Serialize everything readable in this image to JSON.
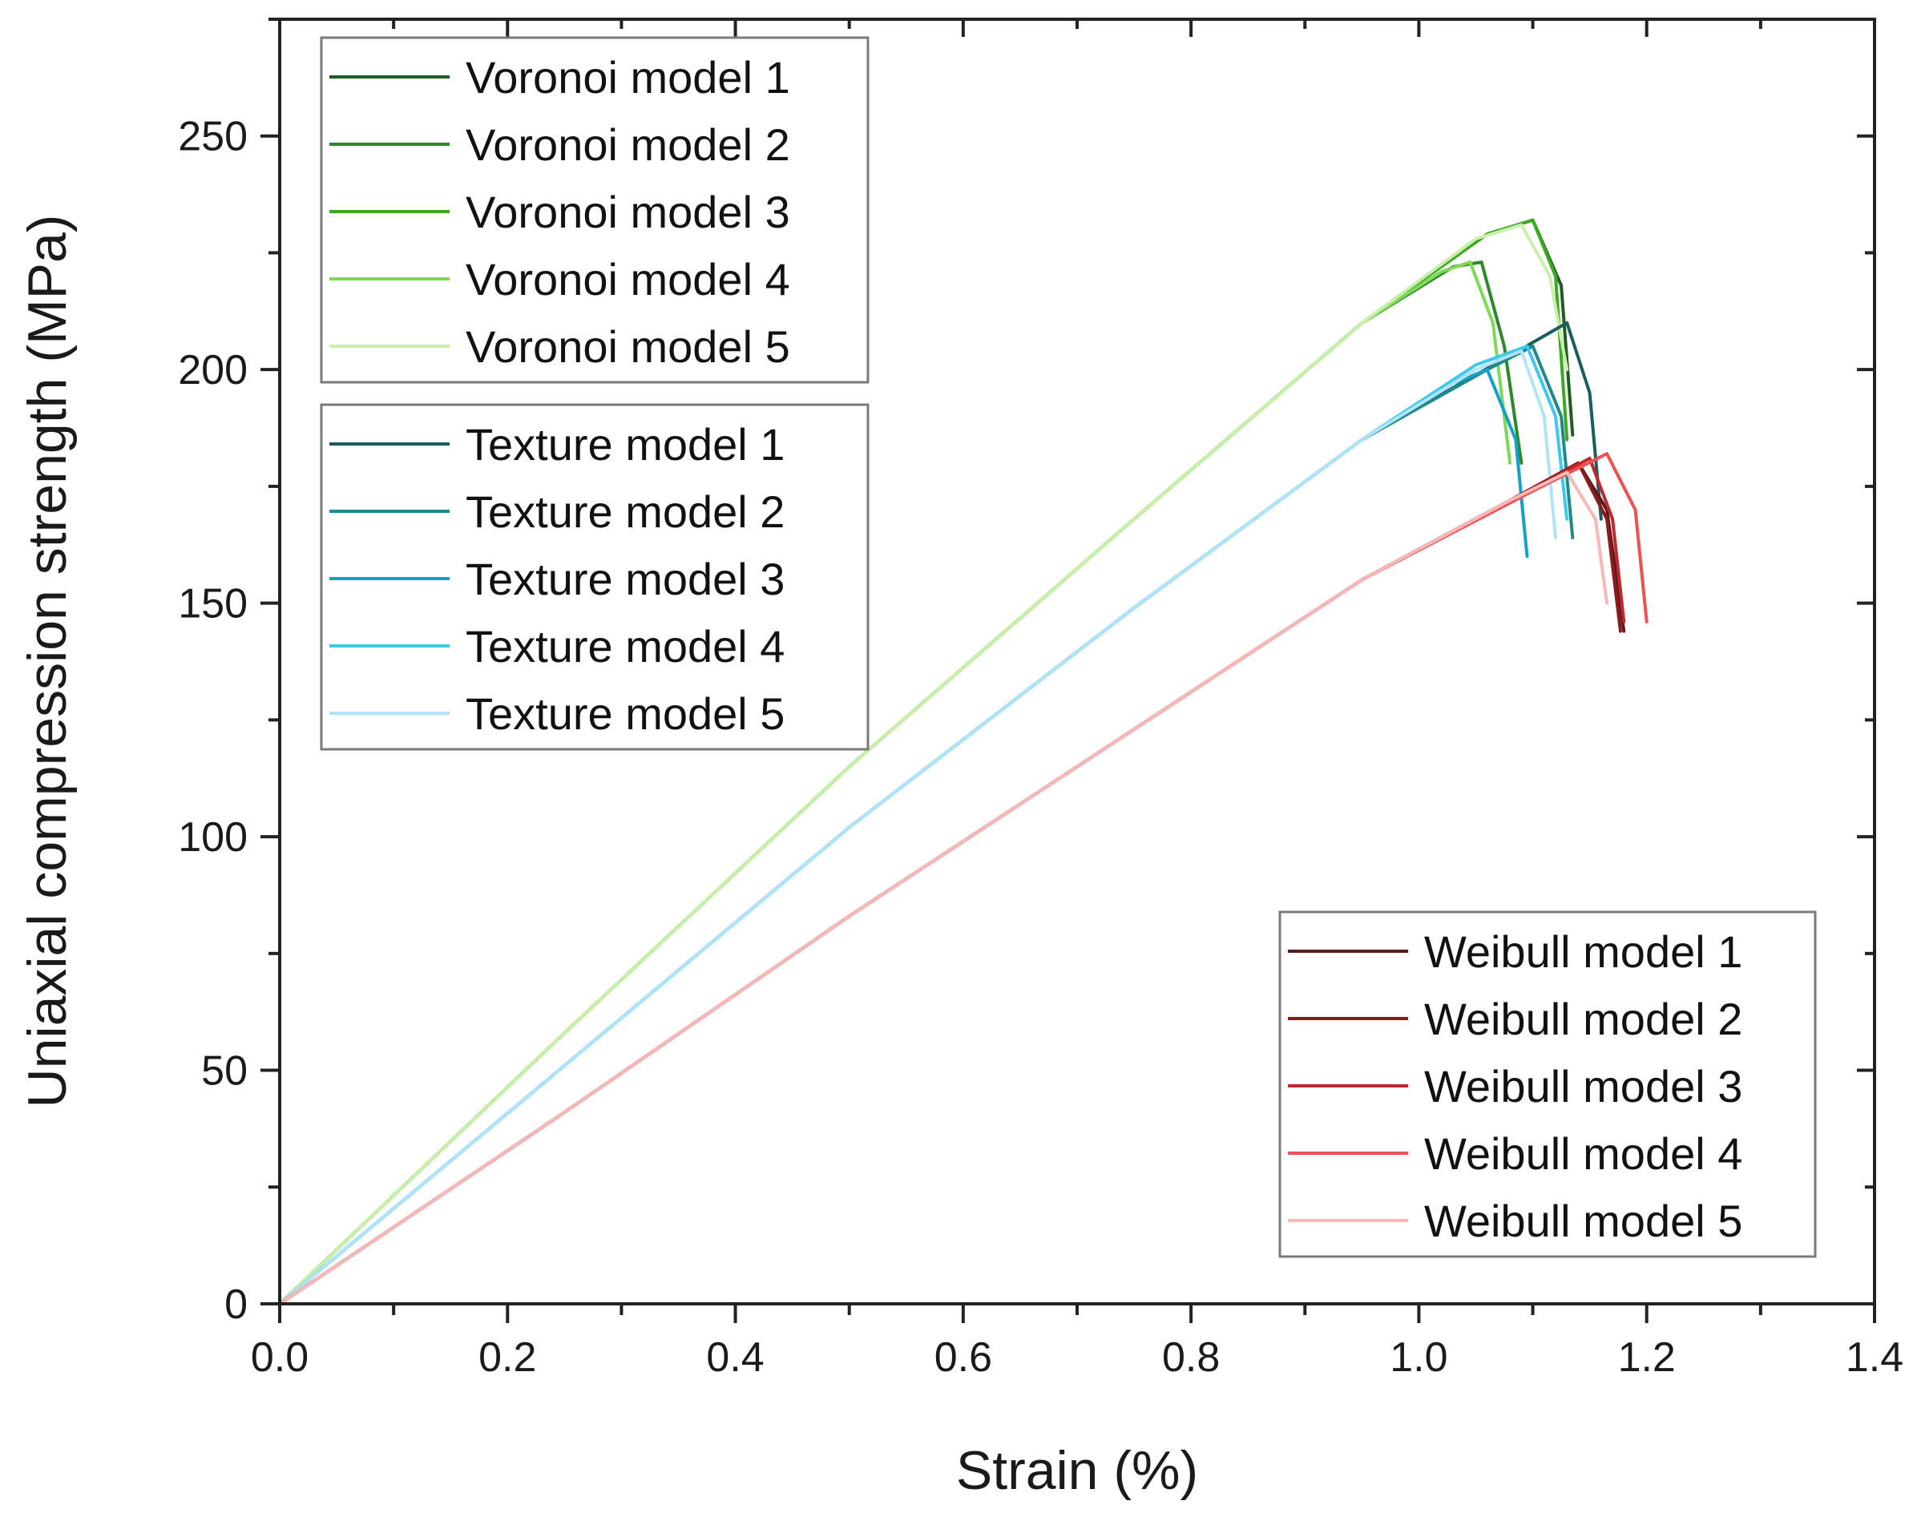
{
  "chart_data": {
    "type": "line",
    "title": "",
    "xlabel": "Strain (%)",
    "ylabel": "Uniaxial compression strength (MPa)",
    "xlim": [
      0,
      1.4
    ],
    "ylim": [
      0,
      275
    ],
    "xticks": [
      0.0,
      0.2,
      0.4,
      0.6,
      0.8,
      1.0,
      1.2,
      1.4
    ],
    "xtick_labels": [
      "0.0",
      "0.2",
      "0.4",
      "0.6",
      "0.8",
      "1.0",
      "1.2",
      "1.4"
    ],
    "yticks": [
      0,
      50,
      100,
      150,
      200,
      250
    ],
    "ytick_labels": [
      "0",
      "50",
      "100",
      "150",
      "200",
      "250"
    ],
    "grid": false,
    "legends": [
      {
        "placement": "top-left",
        "entries": [
          "Voronoi model 1",
          "Voronoi model 2",
          "Voronoi model 3",
          "Voronoi model 4",
          "Voronoi model 5"
        ]
      },
      {
        "placement": "upper-left",
        "entries": [
          "Texture model 1",
          "Texture model 2",
          "Texture model 3",
          "Texture model 4",
          "Texture model 5"
        ]
      },
      {
        "placement": "bottom-right",
        "entries": [
          "Weibull model 1",
          "Weibull model 2",
          "Weibull model 3",
          "Weibull model 4",
          "Weibull model 5"
        ]
      }
    ],
    "series": [
      {
        "name": "Voronoi model 1",
        "color": "#1f5e23",
        "x": [
          0,
          0.25,
          0.5,
          0.75,
          0.95,
          1.06,
          1.1,
          1.125,
          1.135
        ],
        "y": [
          0,
          58,
          115,
          168,
          210,
          229,
          232,
          218,
          186
        ]
      },
      {
        "name": "Voronoi model 2",
        "color": "#2a8a2a",
        "x": [
          0,
          0.25,
          0.5,
          0.75,
          0.95,
          1.03,
          1.055,
          1.075,
          1.09
        ],
        "y": [
          0,
          58,
          115,
          168,
          210,
          222,
          223,
          205,
          180
        ]
      },
      {
        "name": "Voronoi model 3",
        "color": "#3aaa22",
        "x": [
          0,
          0.25,
          0.5,
          0.75,
          0.95,
          1.06,
          1.1,
          1.12,
          1.13
        ],
        "y": [
          0,
          58,
          115,
          168,
          210,
          229,
          232,
          220,
          185
        ]
      },
      {
        "name": "Voronoi model 4",
        "color": "#7ed957",
        "x": [
          0,
          0.25,
          0.5,
          0.75,
          0.95,
          1.02,
          1.045,
          1.065,
          1.08
        ],
        "y": [
          0,
          58,
          115,
          168,
          210,
          221,
          223,
          210,
          180
        ]
      },
      {
        "name": "Voronoi model 5",
        "color": "#c8f0a8",
        "x": [
          0,
          0.25,
          0.5,
          0.75,
          0.95,
          1.05,
          1.09,
          1.115,
          1.13
        ],
        "y": [
          0,
          58,
          115,
          168,
          210,
          228,
          231,
          220,
          200
        ]
      },
      {
        "name": "Texture model 1",
        "color": "#1b5e5e",
        "x": [
          0,
          0.25,
          0.5,
          0.75,
          0.95,
          1.08,
          1.13,
          1.15,
          1.16
        ],
        "y": [
          0,
          51,
          102,
          149,
          185,
          203,
          210,
          195,
          168
        ]
      },
      {
        "name": "Texture model 2",
        "color": "#1f8a8a",
        "x": [
          0,
          0.25,
          0.5,
          0.75,
          0.95,
          1.06,
          1.1,
          1.125,
          1.135
        ],
        "y": [
          0,
          51,
          102,
          149,
          185,
          200,
          205,
          190,
          164
        ]
      },
      {
        "name": "Texture model 3",
        "color": "#16a0c8",
        "x": [
          0,
          0.25,
          0.5,
          0.75,
          0.95,
          1.03,
          1.06,
          1.085,
          1.095
        ],
        "y": [
          0,
          51,
          102,
          149,
          185,
          197,
          200,
          185,
          160
        ]
      },
      {
        "name": "Texture model 4",
        "color": "#3ec8f0",
        "x": [
          0,
          0.25,
          0.5,
          0.75,
          0.95,
          1.05,
          1.095,
          1.12,
          1.13
        ],
        "y": [
          0,
          51,
          102,
          149,
          185,
          201,
          205,
          190,
          168
        ]
      },
      {
        "name": "Texture model 5",
        "color": "#b0e4f8",
        "x": [
          0,
          0.25,
          0.5,
          0.75,
          0.95,
          1.05,
          1.09,
          1.11,
          1.12
        ],
        "y": [
          0,
          51,
          102,
          149,
          185,
          200,
          204,
          190,
          164
        ]
      },
      {
        "name": "Weibull model 1",
        "color": "#5a1a1a",
        "x": [
          0,
          0.25,
          0.5,
          0.75,
          0.95,
          1.08,
          1.14,
          1.165,
          1.18
        ],
        "y": [
          0,
          41,
          83,
          123,
          155,
          172,
          180,
          170,
          144
        ]
      },
      {
        "name": "Weibull model 2",
        "color": "#8b1a1a",
        "x": [
          0,
          0.25,
          0.5,
          0.75,
          0.95,
          1.08,
          1.14,
          1.165,
          1.177
        ],
        "y": [
          0,
          41,
          83,
          123,
          155,
          172,
          180,
          168,
          144
        ]
      },
      {
        "name": "Weibull model 3",
        "color": "#c0282c",
        "x": [
          0,
          0.25,
          0.5,
          0.75,
          0.95,
          1.09,
          1.15,
          1.17,
          1.18
        ],
        "y": [
          0,
          41,
          83,
          123,
          155,
          173,
          181,
          168,
          146
        ]
      },
      {
        "name": "Weibull model 4",
        "color": "#f05050",
        "x": [
          0,
          0.25,
          0.5,
          0.75,
          0.95,
          1.1,
          1.165,
          1.19,
          1.2
        ],
        "y": [
          0,
          41,
          83,
          123,
          155,
          174,
          182,
          170,
          146
        ]
      },
      {
        "name": "Weibull model 5",
        "color": "#f8b8b8",
        "x": [
          0,
          0.25,
          0.5,
          0.75,
          0.95,
          1.08,
          1.13,
          1.155,
          1.165
        ],
        "y": [
          0,
          41,
          83,
          123,
          155,
          172,
          178,
          168,
          150
        ]
      }
    ]
  }
}
